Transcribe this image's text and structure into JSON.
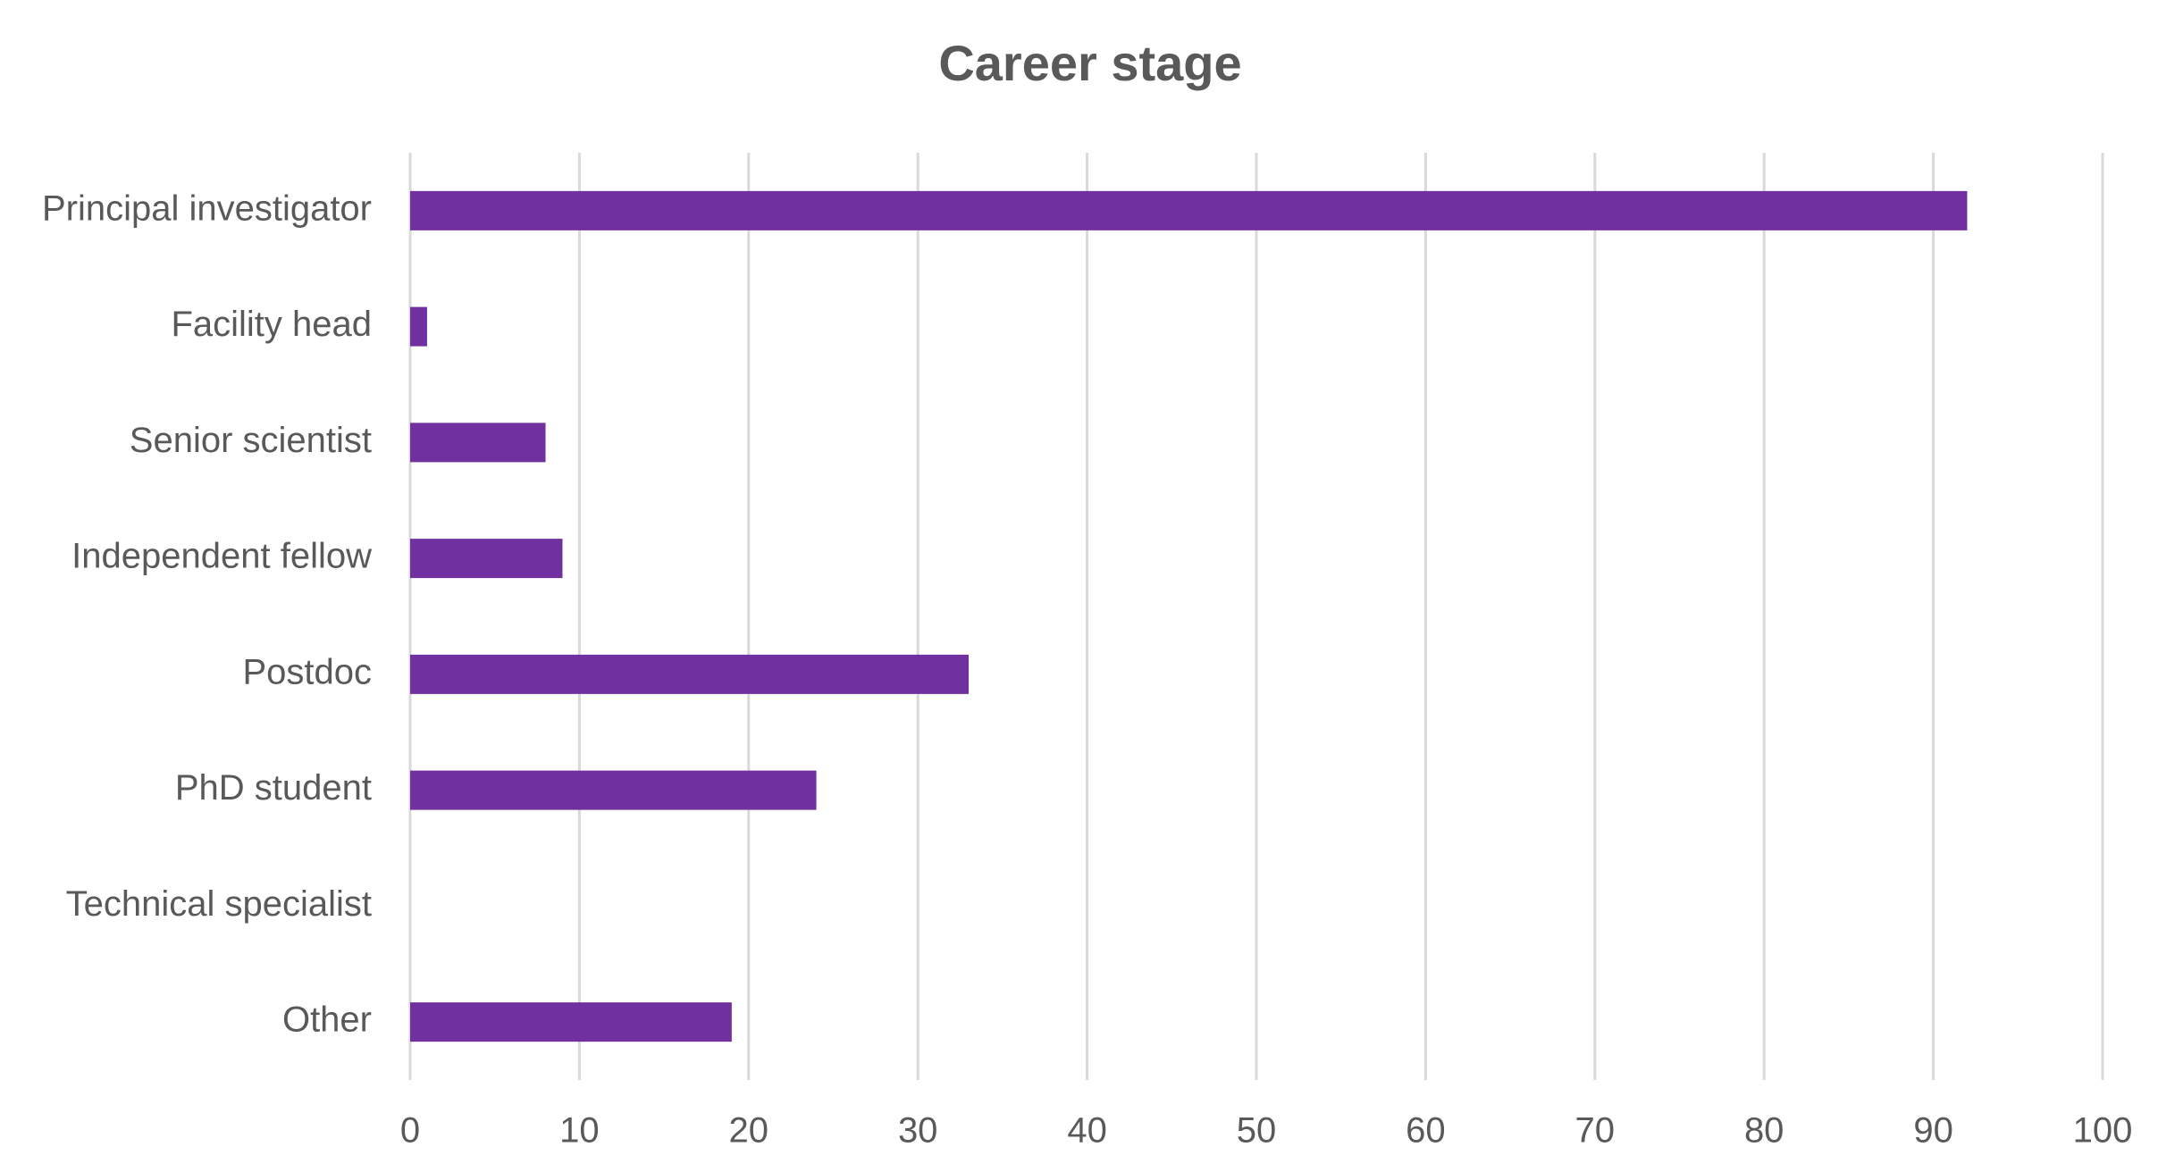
{
  "chart_data": {
    "type": "bar",
    "orientation": "horizontal",
    "title": "Career stage",
    "categories": [
      "Principal investigator",
      "Facility head",
      "Senior scientist",
      "Independent fellow",
      "Postdoc",
      "PhD student",
      "Technical specialist",
      "Other"
    ],
    "values": [
      92,
      1,
      8,
      9,
      33,
      24,
      0,
      19
    ],
    "color": "#7030a0",
    "xlim": [
      0,
      100
    ],
    "xticks": [
      0,
      10,
      20,
      30,
      40,
      50,
      60,
      70,
      80,
      90,
      100
    ],
    "grid": true
  }
}
